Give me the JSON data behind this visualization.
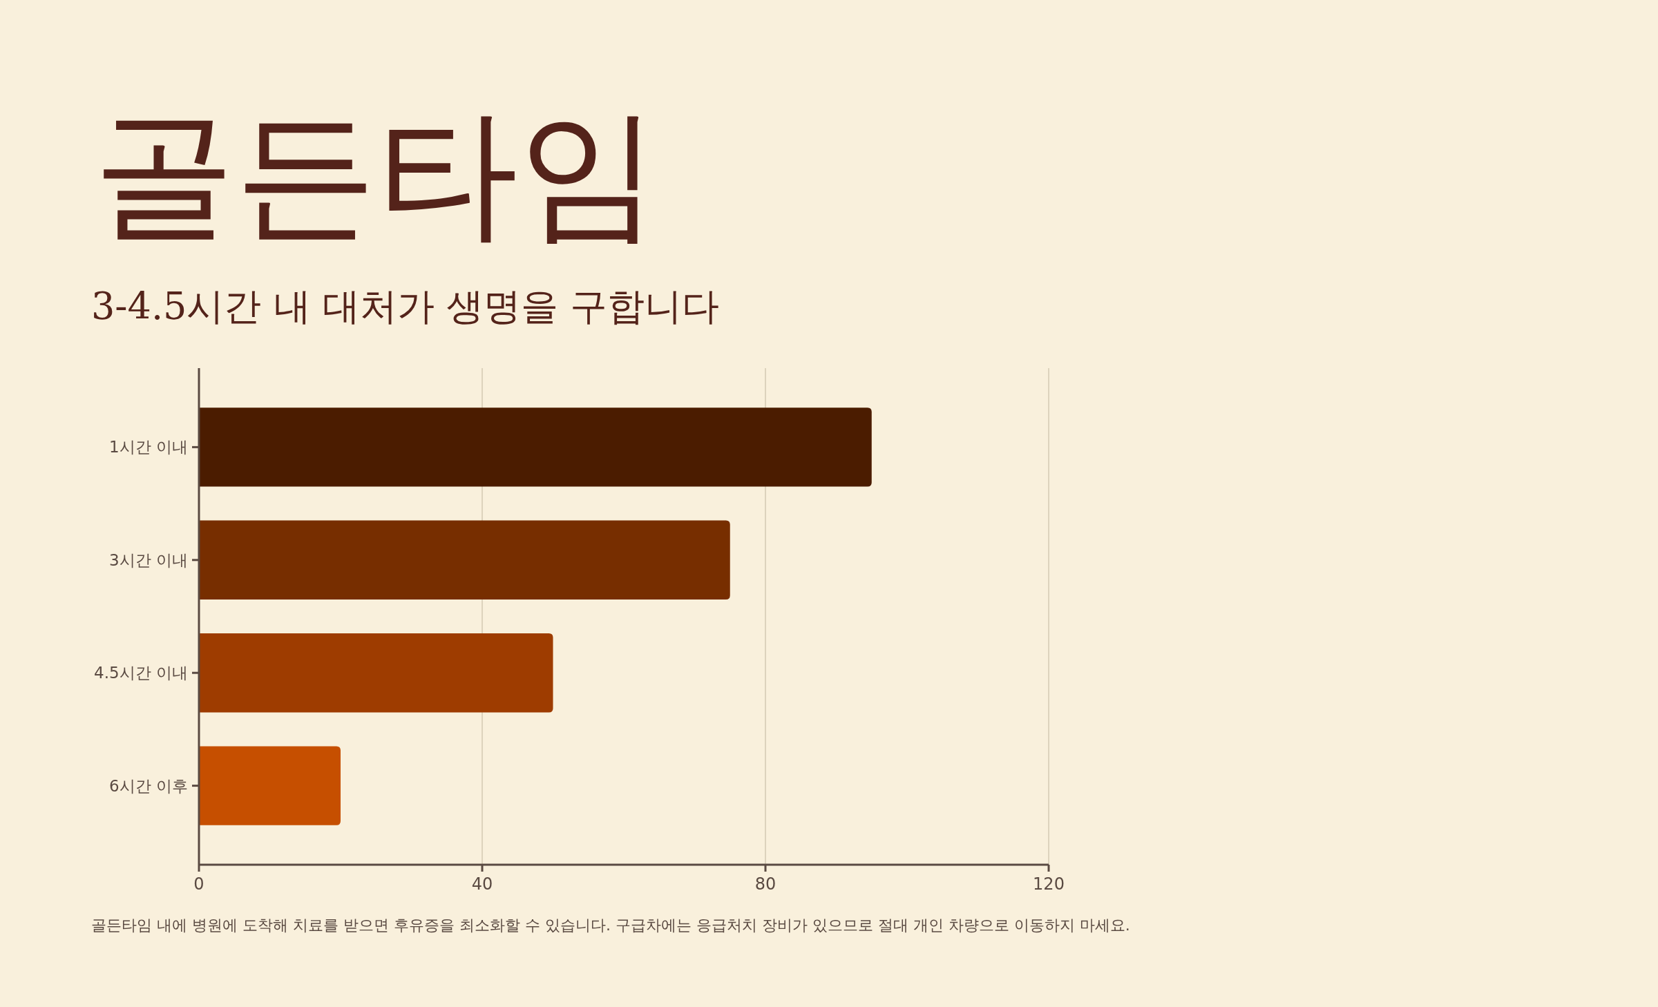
{
  "chart_data": {
    "type": "bar",
    "orientation": "horizontal",
    "title": "골든타임",
    "subtitle": "3-4.5시간 내 대처가 생명을 구합니다",
    "categories": [
      "1시간 이내",
      "3시간 이내",
      "4.5시간 이내",
      "6시간 이후"
    ],
    "values": [
      95,
      75,
      50,
      20
    ],
    "colors": [
      "#4b1c00",
      "#772e00",
      "#9e3c00",
      "#c64f00"
    ],
    "xlim": [
      0,
      120
    ],
    "xticks": [
      0,
      40,
      80,
      120
    ],
    "grid": "x",
    "annotations": [
      "골든타임 내에 병원에 도착해 치료를 받으면 후유증을 최소화할 수 있습니다. 구급차에는 응급처치 장비가 있으므로 절대 개인 차량으로 이동하지 마세요."
    ]
  }
}
